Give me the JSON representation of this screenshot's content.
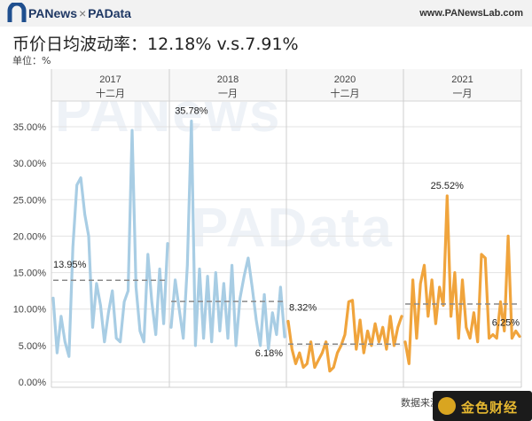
{
  "header": {
    "logo_left": "PANews",
    "logo_sep": "×",
    "logo_right": "PAData",
    "url": "www.PANewsLab.com"
  },
  "title": "币价日均波动率：12.18% v.s.7.91%",
  "unit": "单位：%",
  "source": "数据来源：",
  "footer_badge": "金色财经",
  "watermarks": [
    "PANews",
    "PAData"
  ],
  "chart_data": {
    "type": "line",
    "y_ticks": [
      "0.00%",
      "5.00%",
      "10.00%",
      "15.00%",
      "20.00%",
      "25.00%",
      "30.00%",
      "35.00%"
    ],
    "ylim": [
      0,
      38
    ],
    "grid": true,
    "panels": [
      {
        "year": "2017",
        "month": "十二月",
        "color": "#a8cde4",
        "values": [
          11.5,
          4.0,
          9.0,
          5.5,
          3.5,
          18.5,
          27.0,
          28.0,
          23.0,
          20.0,
          7.5,
          13.5,
          10.5,
          5.5,
          9.5,
          12.5,
          6.0,
          5.5,
          11.0,
          12.5,
          34.5,
          13.0,
          7.0,
          5.5,
          17.5,
          11.0,
          6.5,
          15.5,
          8.0,
          19.0
        ],
        "avg": 13.95,
        "avg_label": "13.95%",
        "peak_label": ""
      },
      {
        "year": "2018",
        "month": "一月",
        "color": "#a8cde4",
        "values": [
          7.5,
          14.0,
          10.0,
          6.0,
          16.0,
          35.78,
          5.0,
          15.5,
          6.0,
          14.5,
          5.5,
          15.0,
          7.0,
          13.5,
          6.0,
          16.0,
          5.0,
          11.5,
          14.5,
          17.0,
          13.0,
          8.5,
          5.0,
          12.0,
          4.5,
          9.5,
          6.5,
          13.0,
          6.18
        ],
        "avg": 11.05,
        "avg_label": "",
        "peak_label": "35.78%",
        "end_label": "6.18%"
      },
      {
        "year": "2020",
        "month": "十二月",
        "color": "#f0a43c",
        "values": [
          8.32,
          4.5,
          2.5,
          4.0,
          2.0,
          2.5,
          5.5,
          2.0,
          3.0,
          4.0,
          5.5,
          1.5,
          2.0,
          4.0,
          5.0,
          6.5,
          11.0,
          11.2,
          4.5,
          8.5,
          4.0,
          7.0,
          5.0,
          8.0,
          5.5,
          7.5,
          4.5,
          9.0,
          5.0,
          7.5,
          9.0
        ],
        "avg": 5.2,
        "avg_label": "8.32%",
        "peak_label": ""
      },
      {
        "year": "2021",
        "month": "一月",
        "color": "#f0a43c",
        "values": [
          5.5,
          2.5,
          14.0,
          6.0,
          13.5,
          16.0,
          9.0,
          14.0,
          8.0,
          13.0,
          10.5,
          25.52,
          9.0,
          15.0,
          6.0,
          14.0,
          7.5,
          6.0,
          9.5,
          5.5,
          17.5,
          17.0,
          6.0,
          6.5,
          6.0,
          11.0,
          7.0,
          20.0,
          6.0,
          7.0,
          6.25
        ],
        "avg": 10.7,
        "avg_label": "",
        "peak_label": "25.52%",
        "end_label": "6.25%"
      }
    ]
  }
}
